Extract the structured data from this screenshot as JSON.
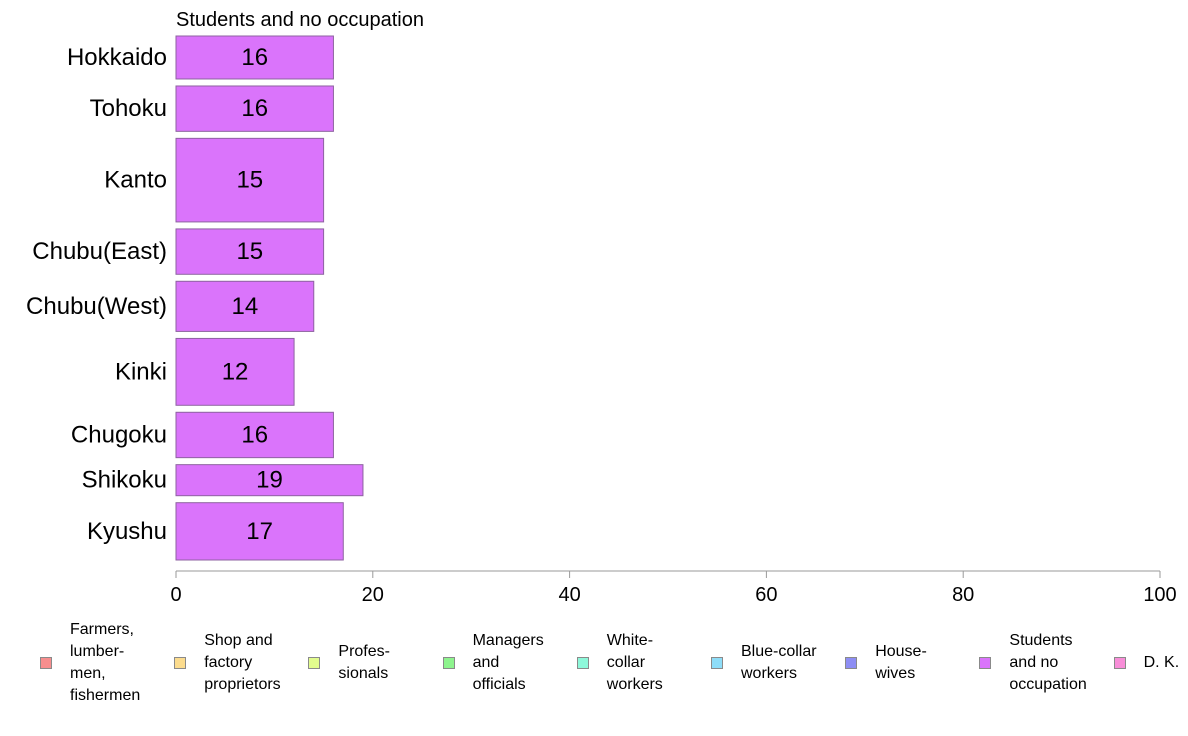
{
  "chart_data": {
    "type": "bar",
    "orientation": "horizontal",
    "title": "Students and no occupation",
    "xlabel": "",
    "ylabel": "",
    "categories": [
      "Hokkaido",
      "Tohoku",
      "Kanto",
      "Chubu(East)",
      "Chubu(West)",
      "Kinki",
      "Chugoku",
      "Shikoku",
      "Kyushu"
    ],
    "values": [
      16,
      16,
      15,
      15,
      14,
      12,
      16,
      19,
      17
    ],
    "data_labels": [
      "16",
      "16",
      "15",
      "15",
      "14",
      "12",
      "16",
      "19",
      "17"
    ],
    "bar_thickness_relative": [
      0.9,
      0.95,
      1.75,
      0.95,
      1.05,
      1.4,
      0.95,
      0.65,
      1.2
    ],
    "xlim": [
      0,
      100
    ],
    "xticks": [
      "0",
      "20",
      "40",
      "60",
      "80",
      "100"
    ],
    "grid": false,
    "bar_color": "#da74fb",
    "legend_position": "bottom",
    "legend": [
      {
        "label": "Farmers,\nlumber-\nmen,\nfishermen",
        "color": "#f78e8e"
      },
      {
        "label": "Shop and\nfactory\nproprietors",
        "color": "#fcdc8e"
      },
      {
        "label": "Profes-\nsionals",
        "color": "#e2fc8e"
      },
      {
        "label": "Managers\nand\nofficials",
        "color": "#8ef48e"
      },
      {
        "label": "White-\ncollar\nworkers",
        "color": "#8ef8da"
      },
      {
        "label": "Blue-collar\nworkers",
        "color": "#8eddf8"
      },
      {
        "label": "House-\nwives",
        "color": "#8e8ef4"
      },
      {
        "label": "Students\nand no\noccupation",
        "color": "#da74fb"
      },
      {
        "label": "D. K.",
        "color": "#f88ed8"
      }
    ]
  }
}
